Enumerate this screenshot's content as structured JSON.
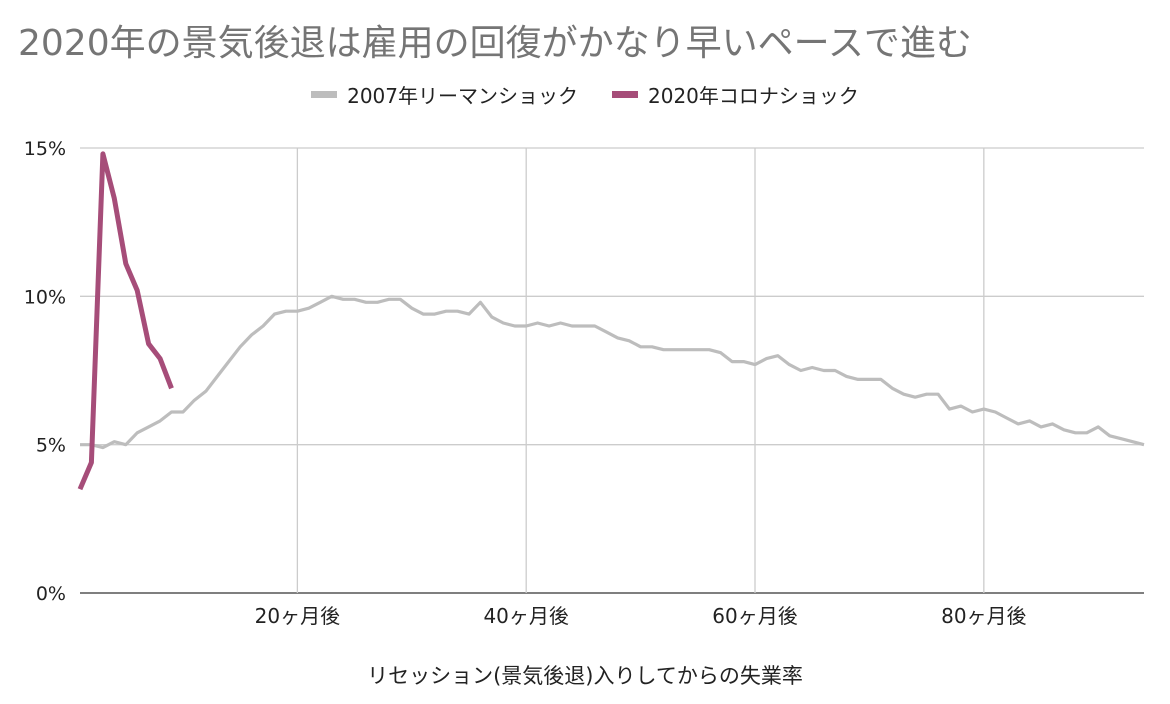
{
  "chart_data": {
    "type": "line",
    "title": "2020年の景気後退は雇用の回復がかなり早いペースで進む",
    "xlabel": "リセッション(景気後退)入りしてからの失業率",
    "ylabel": "",
    "xlim": [
      0,
      93
    ],
    "ylim": [
      0,
      15
    ],
    "x_ticks": [
      {
        "value": 19,
        "label": "20ヶ月後"
      },
      {
        "value": 39,
        "label": "40ヶ月後"
      },
      {
        "value": 59,
        "label": "60ヶ月後"
      },
      {
        "value": 79,
        "label": "80ヶ月後"
      }
    ],
    "y_ticks": [
      {
        "value": 0,
        "label": "0%"
      },
      {
        "value": 5,
        "label": "5%"
      },
      {
        "value": 10,
        "label": "10%"
      },
      {
        "value": 15,
        "label": "15%"
      }
    ],
    "grid": true,
    "legend_position": "top-center",
    "series": [
      {
        "name": "2007年リーマンショック",
        "color": "#bdbdbd",
        "values": [
          5.0,
          5.0,
          4.9,
          5.1,
          5.0,
          5.4,
          5.6,
          5.8,
          6.1,
          6.1,
          6.5,
          6.8,
          7.3,
          7.8,
          8.3,
          8.7,
          9.0,
          9.4,
          9.5,
          9.5,
          9.6,
          9.8,
          10.0,
          9.9,
          9.9,
          9.8,
          9.8,
          9.9,
          9.9,
          9.6,
          9.4,
          9.4,
          9.5,
          9.5,
          9.4,
          9.8,
          9.3,
          9.1,
          9.0,
          9.0,
          9.1,
          9.0,
          9.1,
          9.0,
          9.0,
          9.0,
          8.8,
          8.6,
          8.5,
          8.3,
          8.3,
          8.2,
          8.2,
          8.2,
          8.2,
          8.2,
          8.1,
          7.8,
          7.8,
          7.7,
          7.9,
          8.0,
          7.7,
          7.5,
          7.6,
          7.5,
          7.5,
          7.3,
          7.2,
          7.2,
          7.2,
          6.9,
          6.7,
          6.6,
          6.7,
          6.7,
          6.2,
          6.3,
          6.1,
          6.2,
          6.1,
          5.9,
          5.7,
          5.8,
          5.6,
          5.7,
          5.5,
          5.4,
          5.4,
          5.6,
          5.3,
          5.2,
          5.1,
          5.0
        ]
      },
      {
        "name": "2020年コロナショック",
        "color": "#a64d79",
        "values": [
          3.5,
          4.4,
          14.8,
          13.3,
          11.1,
          10.2,
          8.4,
          7.9,
          6.9
        ]
      }
    ]
  }
}
